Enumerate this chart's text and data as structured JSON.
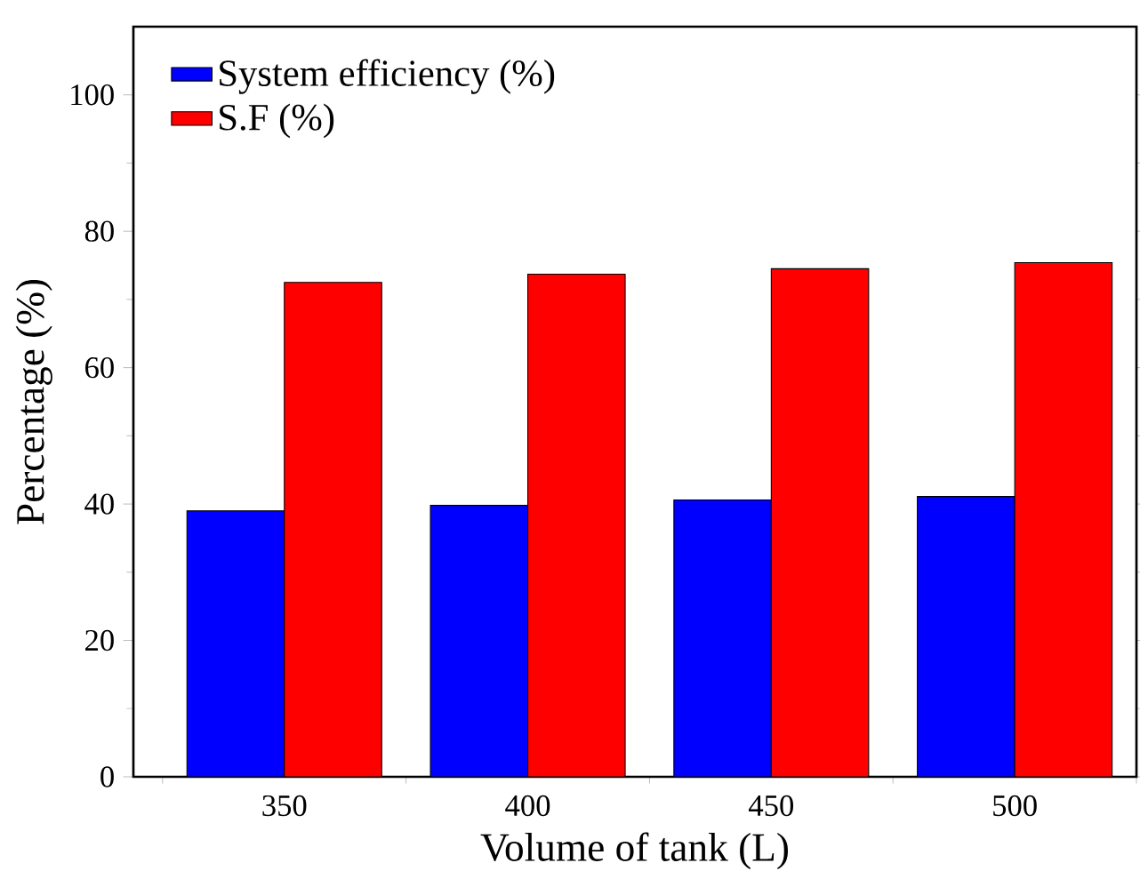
{
  "chart_data": {
    "type": "bar",
    "xlabel": "Volume of tank (L)",
    "ylabel": "Percentage (%)",
    "categories": [
      "350",
      "400",
      "450",
      "500"
    ],
    "series": [
      {
        "name": "System efficiency (%)",
        "color": "#0000ff",
        "values": [
          39.0,
          39.8,
          40.6,
          41.1
        ]
      },
      {
        "name": "S.F (%)",
        "color": "#ff0000",
        "values": [
          72.5,
          73.7,
          74.5,
          75.4
        ]
      }
    ],
    "ylim": [
      0,
      110
    ],
    "yticks": [
      0,
      20,
      40,
      60,
      80,
      100
    ],
    "grid": false,
    "legend": "top left"
  }
}
